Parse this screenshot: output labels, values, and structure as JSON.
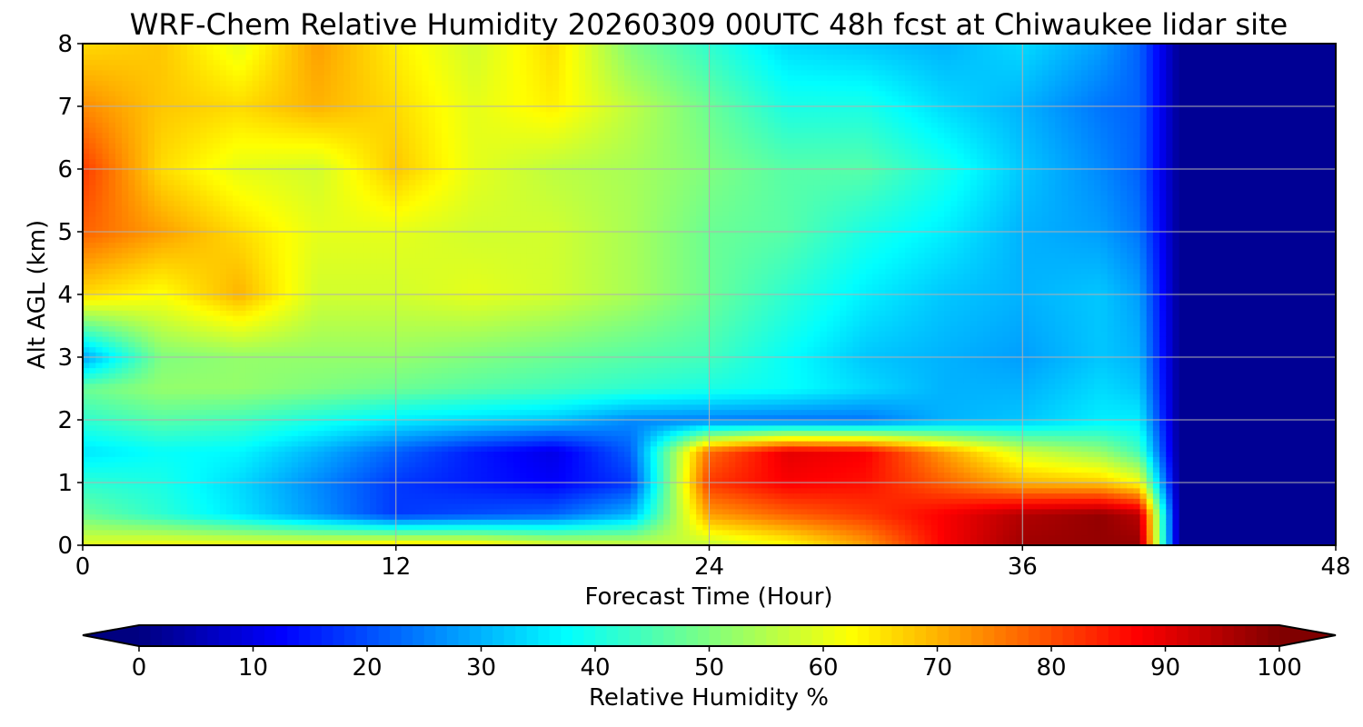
{
  "chart_data": {
    "type": "heatmap",
    "title": "WRF-Chem Relative Humidity 20260309 00UTC 48h fcst at Chiwaukee lidar site",
    "xlabel": "Forecast Time (Hour)",
    "ylabel": "Alt AGL (km)",
    "xlim": [
      0,
      48
    ],
    "ylim": [
      0,
      8
    ],
    "xticks": [
      0,
      12,
      24,
      36,
      48
    ],
    "yticks": [
      0,
      1,
      2,
      3,
      4,
      5,
      6,
      7,
      8
    ],
    "grid": true,
    "colormap": "jet",
    "colorbar": {
      "label": "Relative Humidity %",
      "ticks": [
        0,
        10,
        20,
        30,
        40,
        50,
        60,
        70,
        80,
        90,
        100
      ],
      "range": [
        0,
        100
      ],
      "extend": "both",
      "orientation": "horizontal",
      "placement": "bottom"
    },
    "x": [
      0,
      3,
      6,
      9,
      12,
      15,
      18,
      21,
      24,
      27,
      30,
      33,
      36,
      39,
      40.5,
      42,
      45,
      48
    ],
    "y": [
      0,
      0.5,
      1,
      1.5,
      2,
      2.5,
      3,
      4,
      5,
      6,
      7,
      8
    ],
    "z": [
      [
        60,
        62,
        62,
        63,
        66,
        65,
        60,
        58,
        56,
        62,
        72,
        88,
        97,
        98,
        98,
        2,
        2,
        2
      ],
      [
        48,
        42,
        35,
        27,
        18,
        20,
        22,
        30,
        72,
        78,
        82,
        88,
        95,
        98,
        94,
        2,
        2,
        2
      ],
      [
        42,
        40,
        34,
        26,
        18,
        15,
        12,
        18,
        82,
        88,
        86,
        78,
        70,
        68,
        62,
        2,
        2,
        2
      ],
      [
        35,
        38,
        37,
        30,
        22,
        15,
        10,
        22,
        77,
        90,
        88,
        72,
        58,
        52,
        44,
        2,
        2,
        2
      ],
      [
        42,
        46,
        44,
        40,
        36,
        34,
        32,
        26,
        25,
        24,
        24,
        30,
        32,
        36,
        36,
        2,
        2,
        2
      ],
      [
        48,
        52,
        52,
        50,
        48,
        46,
        44,
        42,
        40,
        38,
        34,
        30,
        30,
        34,
        32,
        2,
        2,
        2
      ],
      [
        28,
        50,
        52,
        52,
        52,
        50,
        48,
        46,
        44,
        38,
        32,
        30,
        28,
        32,
        30,
        2,
        2,
        2
      ],
      [
        66,
        62,
        70,
        58,
        58,
        60,
        58,
        54,
        48,
        42,
        36,
        32,
        30,
        32,
        28,
        2,
        2,
        2
      ],
      [
        78,
        72,
        66,
        60,
        60,
        58,
        58,
        54,
        48,
        46,
        40,
        36,
        30,
        28,
        24,
        2,
        2,
        2
      ],
      [
        82,
        66,
        60,
        58,
        68,
        60,
        56,
        54,
        50,
        46,
        46,
        40,
        32,
        26,
        22,
        2,
        2,
        2
      ],
      [
        74,
        68,
        66,
        70,
        66,
        60,
        64,
        56,
        48,
        40,
        40,
        34,
        30,
        24,
        22,
        2,
        2,
        2
      ],
      [
        66,
        68,
        60,
        72,
        64,
        58,
        66,
        50,
        42,
        34,
        32,
        30,
        34,
        28,
        22,
        2,
        2,
        2
      ]
    ]
  }
}
